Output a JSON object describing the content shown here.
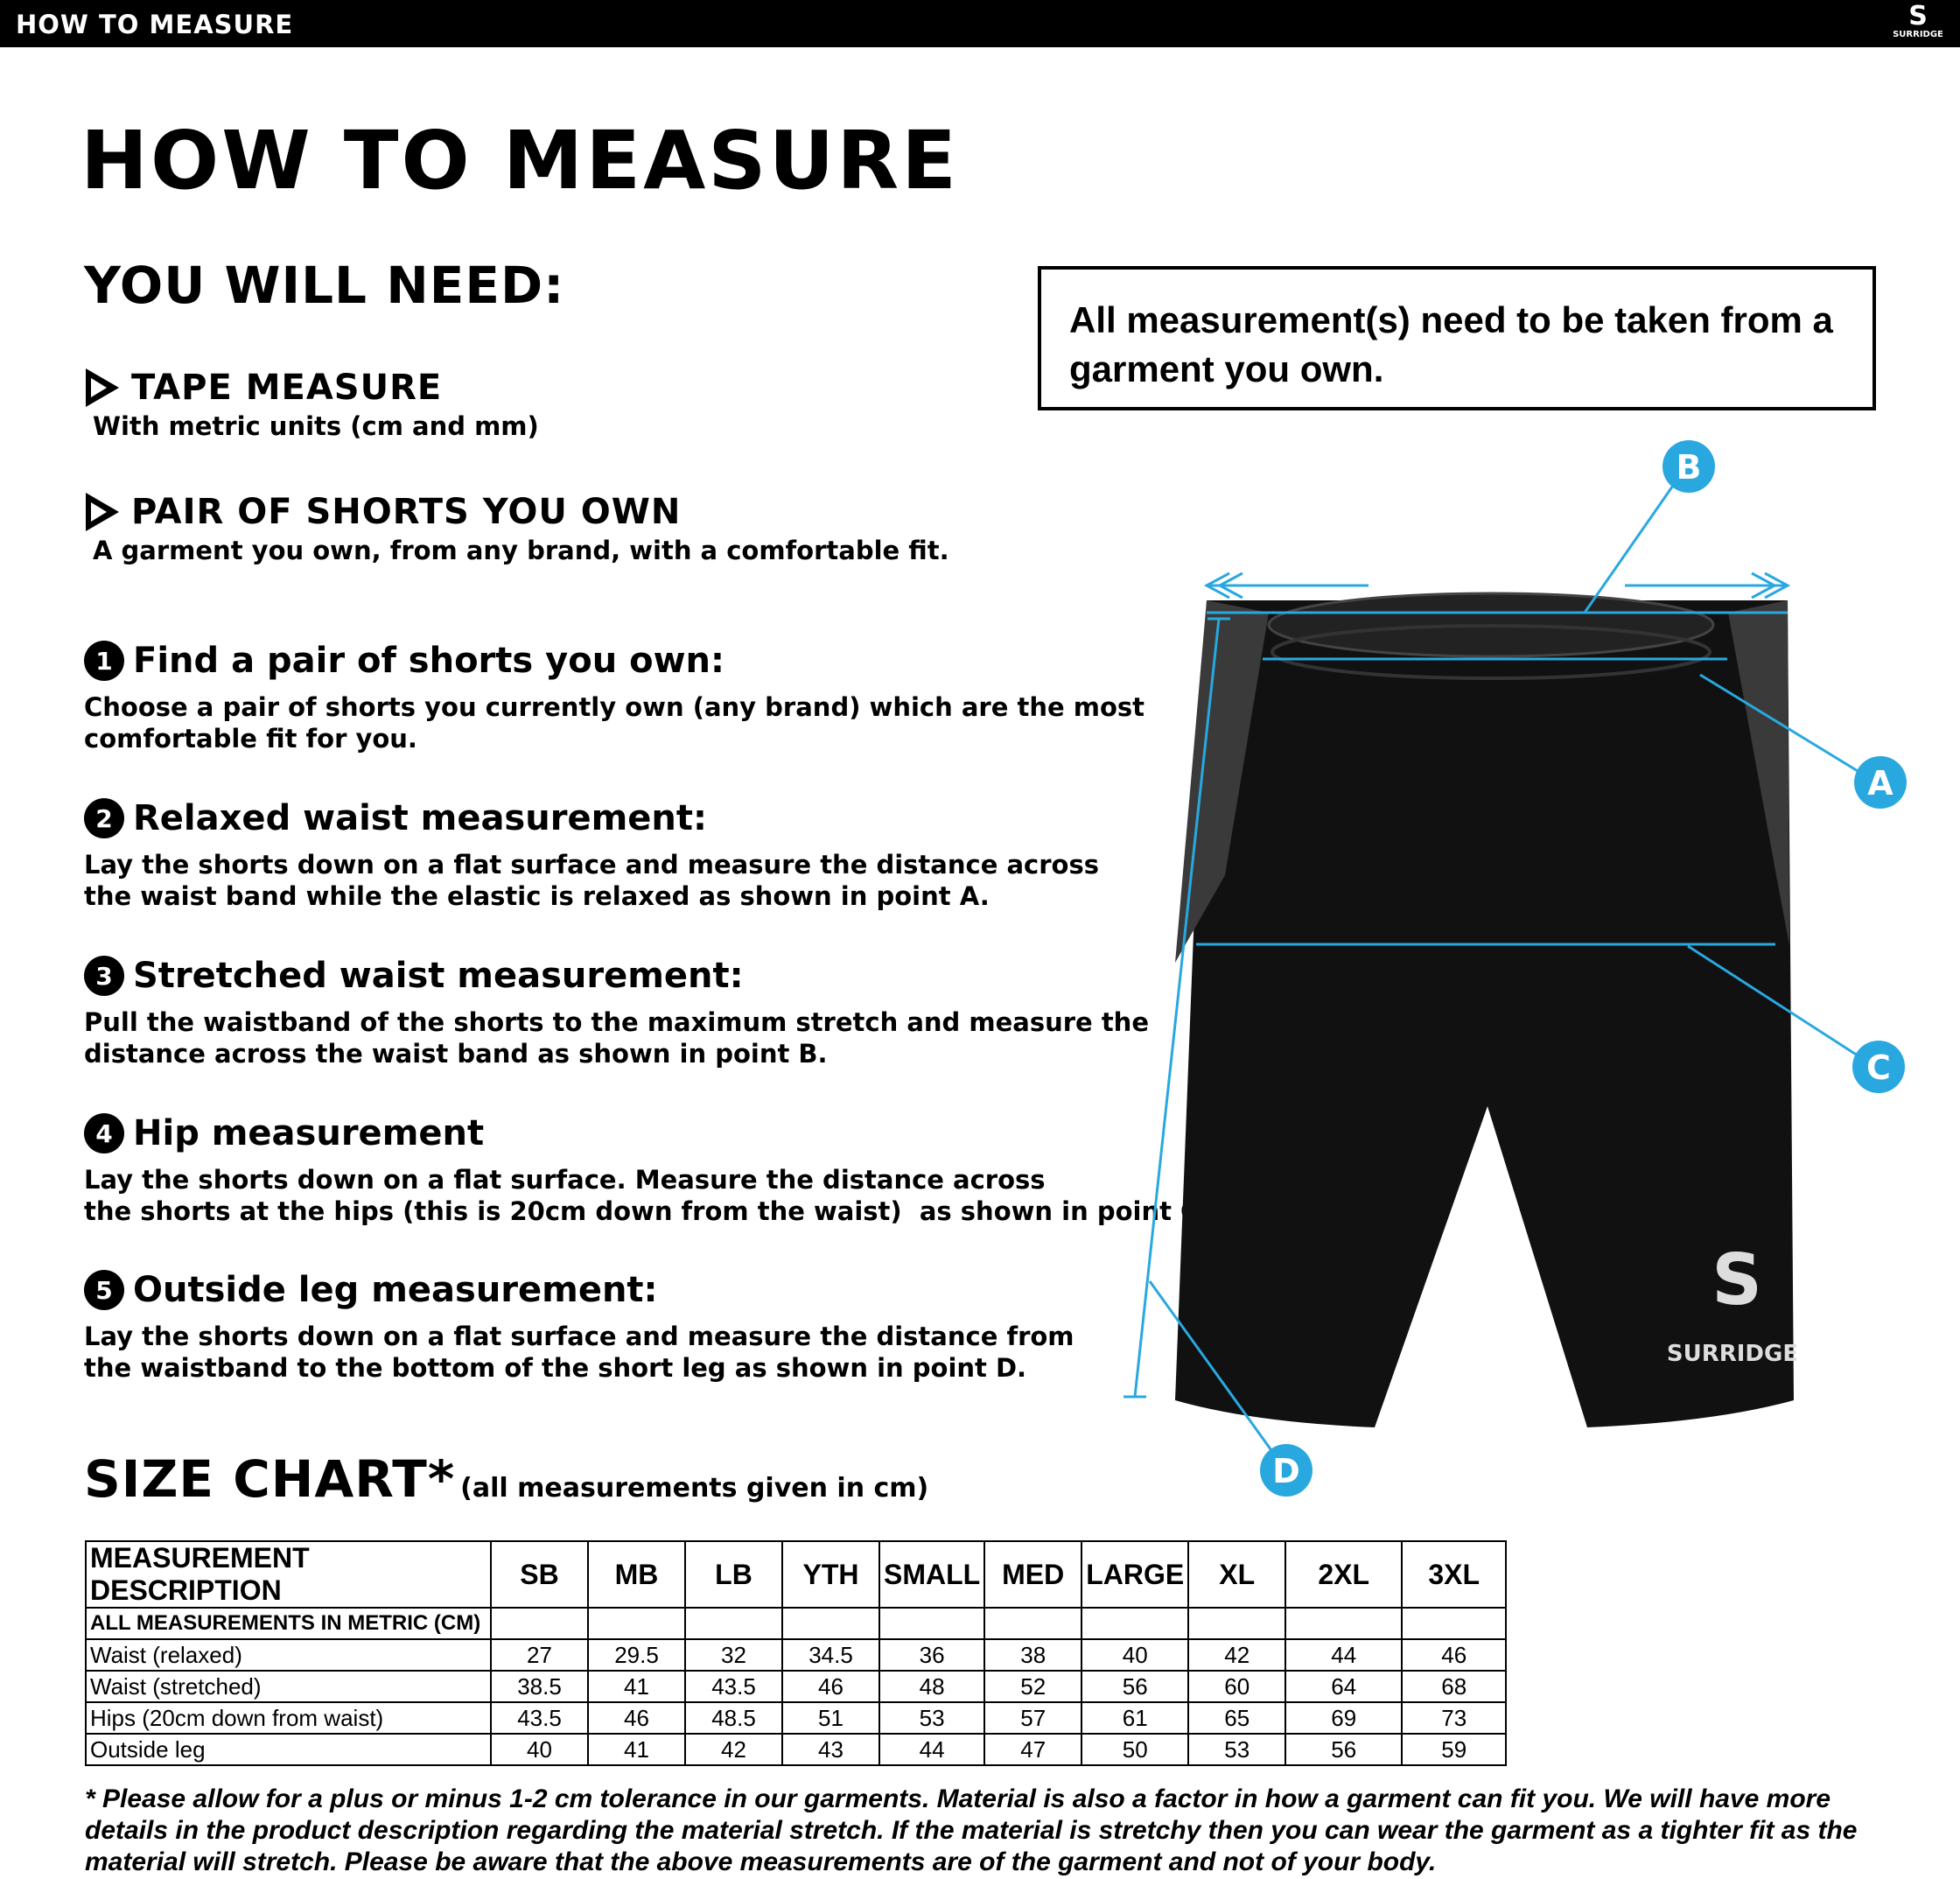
{
  "topbar": {
    "title": "HOW TO MEASURE",
    "logo": "SURRIDGE"
  },
  "title": "HOW TO MEASURE",
  "need": {
    "heading": "YOU WILL NEED:",
    "items": [
      {
        "title": "TAPE MEASURE",
        "desc": "With metric units (cm and mm)"
      },
      {
        "title": "PAIR OF SHORTS YOU OWN",
        "desc": "A garment you own, from any brand, with a comfortable fit."
      }
    ]
  },
  "notice": "All measurement(s) need to be taken from a garment you own.",
  "steps": [
    {
      "n": "1",
      "title": "Find a pair of shorts you own:",
      "text": "Choose a pair of shorts you currently own (any brand) which are the most\ncomfortable fit for you."
    },
    {
      "n": "2",
      "title": "Relaxed waist measurement:",
      "text": "Lay the shorts down on a flat surface and measure the distance across\nthe waist band while the elastic is relaxed as shown in point A."
    },
    {
      "n": "3",
      "title": "Stretched waist measurement:",
      "text": "Pull the waistband of the shorts to the maximum stretch and measure the\ndistance across the waist band as shown in point B."
    },
    {
      "n": "4",
      "title": "Hip measurement",
      "text": "Lay the shorts down on a flat surface. Measure the distance across\nthe shorts at the hips (this is 20cm down from the waist)  as shown in point C."
    },
    {
      "n": "5",
      "title": "Outside leg measurement:",
      "text": "Lay the shorts down on a flat surface and measure the distance from\nthe waistband to the bottom of the short leg as shown in point D."
    }
  ],
  "diagram": {
    "labels": [
      "A",
      "B",
      "C",
      "D"
    ],
    "accent": "#29a8e0",
    "garment_logo": "SURRIDGE"
  },
  "size_chart": {
    "heading": "SIZE CHART*",
    "note": "(all measurements given in cm)",
    "headers": [
      "MEASUREMENT DESCRIPTION",
      "SB",
      "MB",
      "LB",
      "YTH",
      "SMALL",
      "MED",
      "LARGE",
      "XL",
      "2XL",
      "3XL"
    ],
    "subheader": "ALL MEASUREMENTS IN METRIC (CM)",
    "rows": [
      {
        "label": "Waist (relaxed)",
        "values": [
          "27",
          "29.5",
          "32",
          "34.5",
          "36",
          "38",
          "40",
          "42",
          "44",
          "46"
        ]
      },
      {
        "label": "Waist (stretched)",
        "values": [
          "38.5",
          "41",
          "43.5",
          "46",
          "48",
          "52",
          "56",
          "60",
          "64",
          "68"
        ]
      },
      {
        "label": "Hips (20cm down from waist)",
        "values": [
          "43.5",
          "46",
          "48.5",
          "51",
          "53",
          "57",
          "61",
          "65",
          "69",
          "73"
        ]
      },
      {
        "label": "Outside leg",
        "values": [
          "40",
          "41",
          "42",
          "43",
          "44",
          "47",
          "50",
          "53",
          "56",
          "59"
        ]
      }
    ]
  },
  "footnote": "* Please allow for a plus or minus 1-2 cm tolerance in our garments. Material is also a factor in how a garment can fit you. We will have more details in the product description regarding the material stretch.  If the material is stretchy then you can wear the garment as a tighter fit as the material will stretch.  Please be aware that the above measurements are of the garment and not of your body."
}
